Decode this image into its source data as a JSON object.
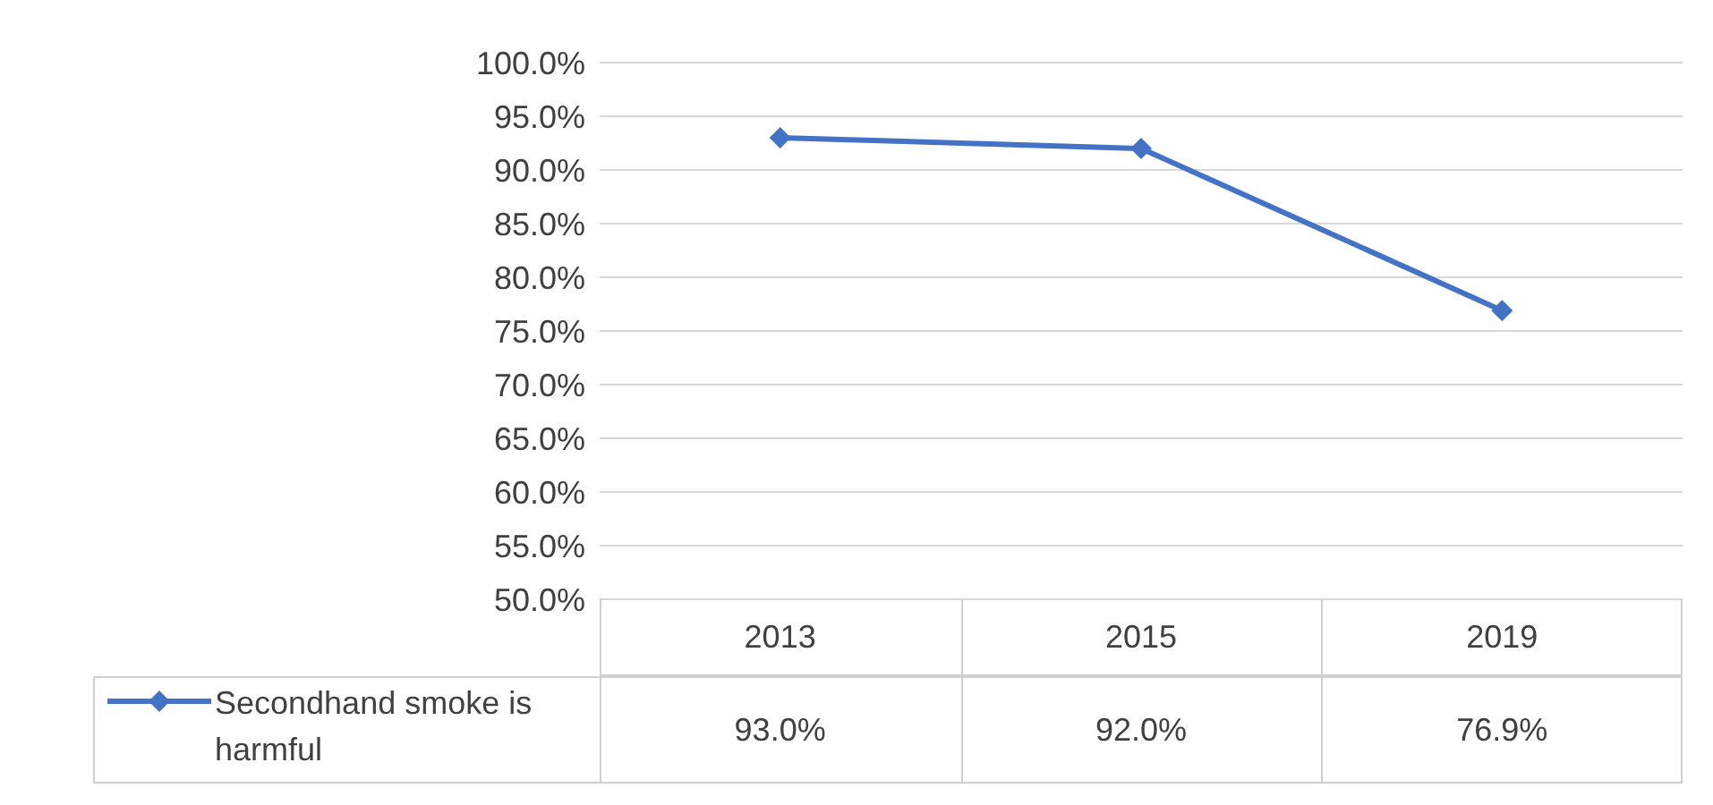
{
  "chart_data": {
    "type": "line",
    "categories": [
      "2013",
      "2015",
      "2019"
    ],
    "series": [
      {
        "name": "Secondhand smoke is harmful",
        "color": "#4472c4",
        "values": [
          93.0,
          92.0,
          76.9
        ],
        "value_labels": [
          "93.0%",
          "92.0%",
          "76.9%"
        ]
      }
    ],
    "ylim": [
      50,
      100
    ],
    "yticks": [
      {
        "value": 50,
        "label": "50.0%"
      },
      {
        "value": 55,
        "label": "55.0%"
      },
      {
        "value": 60,
        "label": "60.0%"
      },
      {
        "value": 65,
        "label": "65.0%"
      },
      {
        "value": 70,
        "label": "70.0%"
      },
      {
        "value": 75,
        "label": "75.0%"
      },
      {
        "value": 80,
        "label": "80.0%"
      },
      {
        "value": 85,
        "label": "85.0%"
      },
      {
        "value": 90,
        "label": "90.0%"
      },
      {
        "value": 95,
        "label": "95.0%"
      },
      {
        "value": 100,
        "label": "100.0%"
      }
    ],
    "grid": "y",
    "marker": "diamond",
    "line_style": "solid",
    "legend": "bottom left"
  }
}
